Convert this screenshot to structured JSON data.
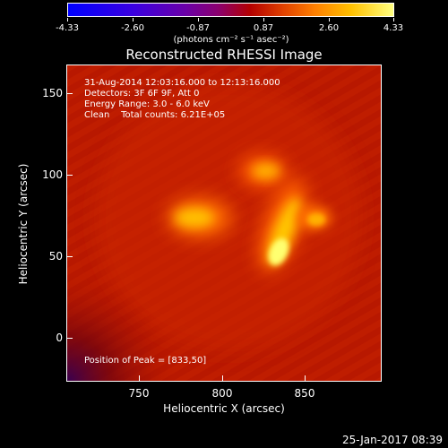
{
  "colorbar": {
    "tick_labels": [
      "-4.33",
      "-2.60",
      "-0.87",
      "0.87",
      "2.60",
      "4.33"
    ],
    "units": "(photons cm⁻² s⁻¹ asec⁻²)"
  },
  "title": "Reconstructed RHESSI Image",
  "info": {
    "line1": "31-Aug-2014 12:03:16.000 to 12:13:16.000",
    "line2": "Detectors: 3F 6F 9F, Att 0",
    "line3": "Energy Range: 3.0 - 6.0 keV",
    "line4": "Clean    Total counts: 6.21E+05",
    "peak": "Position of Peak = [833,50]"
  },
  "axes": {
    "xlabel": "Heliocentric X (arcsec)",
    "ylabel": "Heliocentric Y (arcsec)",
    "xticks": [
      "750",
      "800",
      "850"
    ],
    "yticks": [
      "150",
      "100",
      "50",
      "0"
    ]
  },
  "footer": "25-Jan-2017 08:39"
}
